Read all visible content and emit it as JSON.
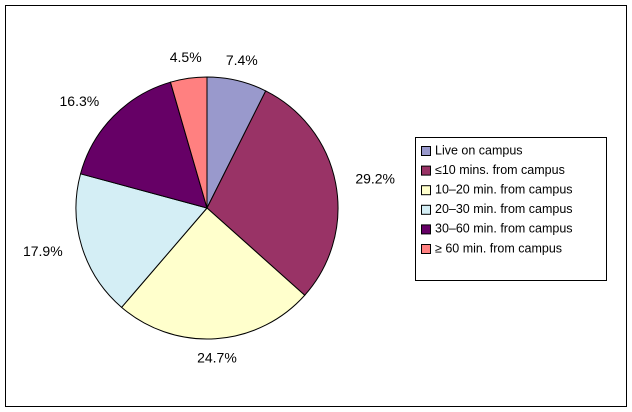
{
  "chart_data": {
    "type": "pie",
    "categories": [
      "Live on campus",
      "≤10 mins. from campus",
      "10–20 min. from campus",
      "20–30 min. from campus",
      "30–60 min. from campus",
      "≥ 60 min. from campus"
    ],
    "values": [
      7.4,
      29.2,
      24.7,
      17.9,
      16.3,
      4.5
    ],
    "value_labels": [
      "7.4%",
      "29.2%",
      "24.7%",
      "17.9%",
      "16.3%",
      "4.5%"
    ],
    "colors": [
      "#9999cc",
      "#993366",
      "#ffffcc",
      "#d4eef5",
      "#660066",
      "#ff8080"
    ],
    "legend": "right"
  }
}
